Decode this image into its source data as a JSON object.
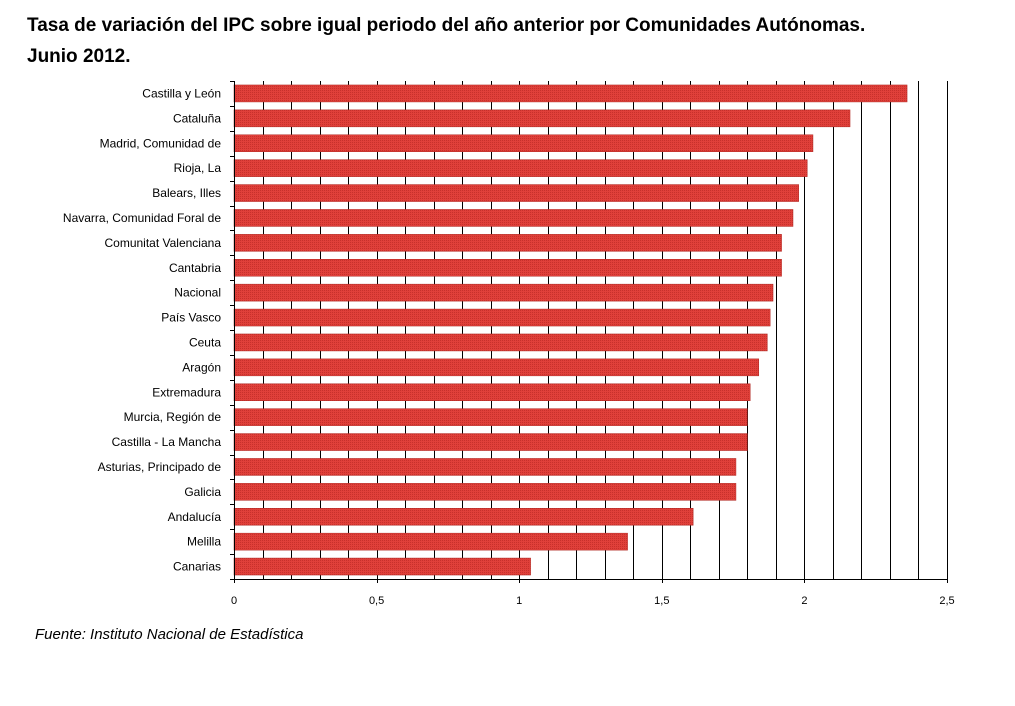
{
  "chart_data": {
    "type": "bar",
    "orientation": "horizontal",
    "title_line1": "Tasa de variación del IPC sobre igual periodo del año anterior por Comunidades Autónomas.",
    "title_line2": "Junio 2012.",
    "categories": [
      "Castilla y León",
      "Cataluña",
      "Madrid, Comunidad de",
      "Rioja, La",
      "Balears, Illes",
      "Navarra, Comunidad Foral de",
      "Comunitat Valenciana",
      "Cantabria",
      "Nacional",
      "País Vasco",
      "Ceuta",
      "Aragón",
      "Extremadura",
      "Murcia, Región de",
      "Castilla - La Mancha",
      "Asturias, Principado de",
      "Galicia",
      "Andalucía",
      "Melilla",
      "Canarias"
    ],
    "values": [
      2.36,
      2.16,
      2.03,
      2.01,
      1.98,
      1.96,
      1.92,
      1.92,
      1.89,
      1.88,
      1.87,
      1.84,
      1.81,
      1.8,
      1.8,
      1.76,
      1.76,
      1.61,
      1.38,
      1.04
    ],
    "xlim": [
      0,
      2.5
    ],
    "ticks": [
      0,
      0.5,
      1,
      1.5,
      2,
      2.5
    ],
    "tick_labels": [
      "0",
      "0,5",
      "1",
      "1,5",
      "2",
      "2,5"
    ],
    "bar_color": "#e0403a",
    "grid": "vertical"
  },
  "source": "Fuente: Instituto Nacional de Estadística"
}
